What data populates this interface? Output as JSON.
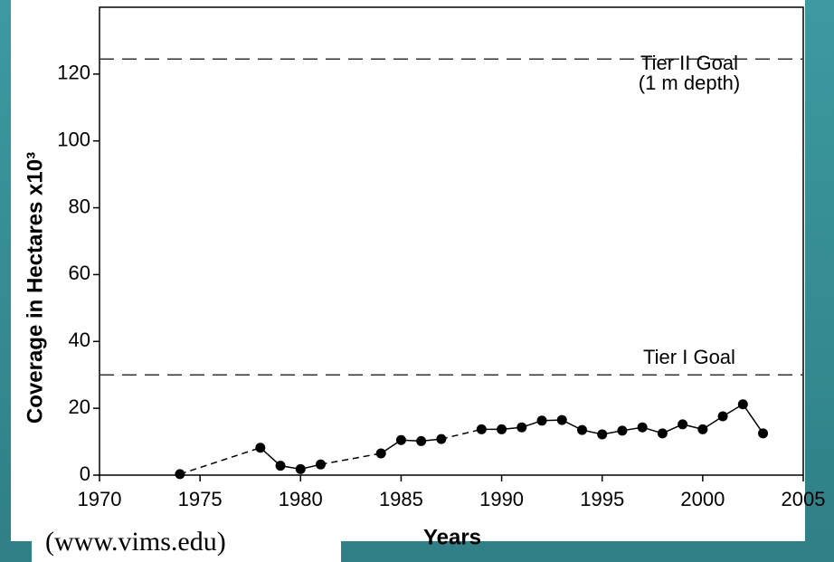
{
  "chart_data": {
    "type": "line",
    "x_label": "Years",
    "y_label": "Coverage in Hectares x10³",
    "source": "(www.vims.edu)",
    "x": [
      1974,
      1978,
      1979,
      1980,
      1981,
      1984,
      1985,
      1986,
      1987,
      1989,
      1990,
      1991,
      1992,
      1993,
      1994,
      1995,
      1996,
      1997,
      1998,
      1999,
      2000,
      2001,
      2002,
      2003
    ],
    "values": [
      0.3,
      8.2,
      2.8,
      1.8,
      3.2,
      6.5,
      10.5,
      10.2,
      10.8,
      13.7,
      13.7,
      14.3,
      16.3,
      16.5,
      13.5,
      12.2,
      13.3,
      14.3,
      12.5,
      15.2,
      13.7,
      17.6,
      21.2,
      12.5
    ],
    "color": "#000000",
    "xlim": [
      1970,
      2005
    ],
    "ylim": [
      0,
      140
    ],
    "xticks": [
      1970,
      1975,
      1980,
      1985,
      1990,
      1995,
      2000,
      2005
    ],
    "yticks": [
      0,
      20,
      40,
      60,
      80,
      100,
      120
    ],
    "reference_lines": [
      {
        "value": 124.5,
        "labels": [
          "Tier II Goal",
          "(1 m depth)"
        ]
      },
      {
        "value": 30,
        "labels": [
          "Tier I Goal"
        ]
      }
    ]
  }
}
